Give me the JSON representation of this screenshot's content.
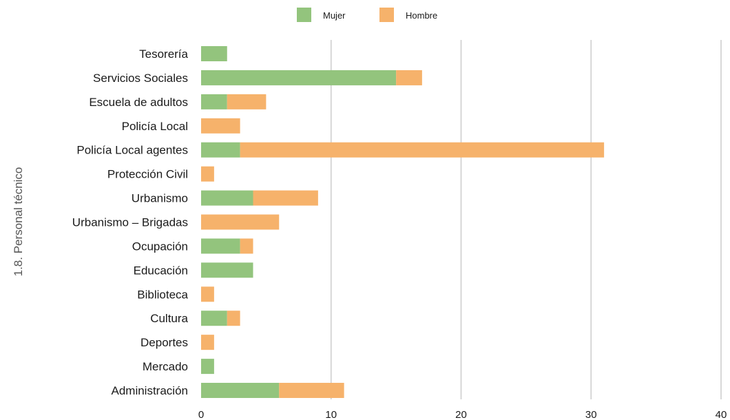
{
  "chart_data": {
    "type": "bar",
    "orientation": "horizontal",
    "stacked": true,
    "ylabel": "1.8. Personal técnico",
    "xlim": [
      0,
      40
    ],
    "xticks": [
      0,
      10,
      20,
      30,
      40
    ],
    "grid": true,
    "legend_position": "top",
    "categories": [
      "Tesorería",
      "Servicios Sociales",
      "Escuela de adultos",
      "Policía Local",
      "Policía Local agentes",
      "Protección Civil",
      "Urbanismo",
      "Urbanismo – Brigadas",
      "Ocupación",
      "Educación",
      "Biblioteca",
      "Cultura",
      "Deportes",
      "Mercado",
      "Administración"
    ],
    "series": [
      {
        "name": "Mujer",
        "color": "#93c47d",
        "values": [
          2,
          15,
          2,
          0,
          3,
          0,
          4,
          0,
          3,
          4,
          0,
          2,
          0,
          1,
          6
        ]
      },
      {
        "name": "Hombre",
        "color": "#f6b26b",
        "values": [
          0,
          2,
          3,
          3,
          28,
          1,
          5,
          6,
          1,
          0,
          1,
          1,
          1,
          0,
          5
        ]
      }
    ]
  }
}
